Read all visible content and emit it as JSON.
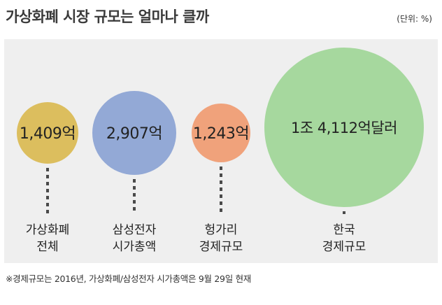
{
  "header": {
    "title": "가상화폐 시장 규모는 얼마나 클까",
    "unit": "(단위: %)"
  },
  "footnote": "※경제규모는 2016년, 가상화폐/삼성전자 시가총액은 9월 29일 현재",
  "chart_data": {
    "type": "bubble",
    "title": "가상화폐 시장 규모는 얼마나 클까",
    "unit_label": "(단위: %)",
    "items": [
      {
        "value_label": "1,409억",
        "value": 140900000000,
        "label_lines": [
          "가상화폐",
          "전체"
        ],
        "color": "#dcbe5e"
      },
      {
        "value_label": "2,907억",
        "value": 290700000000,
        "label_lines": [
          "삼성전자",
          "시가총액"
        ],
        "color": "#93a9d6"
      },
      {
        "value_label": "1,243억",
        "value": 124300000000,
        "label_lines": [
          "헝가리",
          "경제규모"
        ],
        "color": "#f0a27b"
      },
      {
        "value_label": "1조 4,112억달러",
        "value": 1411200000000,
        "label_lines": [
          "한국",
          "경제규모"
        ],
        "color": "#a6d89e"
      }
    ]
  }
}
